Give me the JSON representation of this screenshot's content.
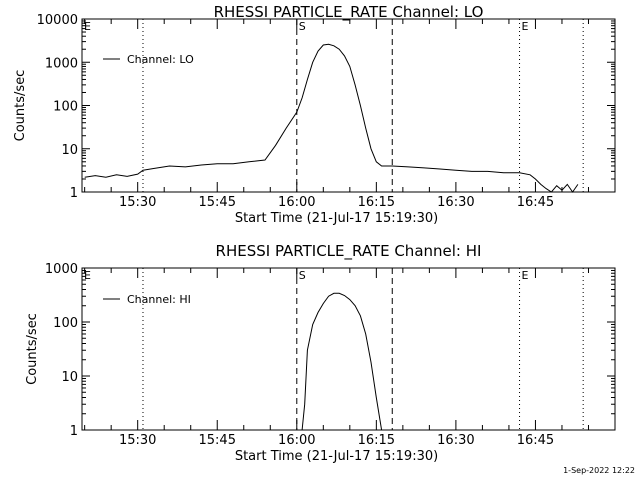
{
  "footer": {
    "stamp": "1-Sep-2022 12:22"
  },
  "chart_data": [
    {
      "type": "line",
      "title": "RHESSI PARTICLE_RATE Channel: LO",
      "xlabel": "Start Time (21-Jul-17 15:19:30)",
      "ylabel": "Counts/sec",
      "yscale": "log",
      "xlim": [
        "15:19:30",
        "17:00:00"
      ],
      "ylim": [
        1,
        10000
      ],
      "x_ticks": [
        "15:30",
        "15:45",
        "16:00",
        "16:15",
        "16:30",
        "16:45"
      ],
      "y_ticks": [
        "1",
        "10",
        "100",
        "1000",
        "10000"
      ],
      "legend": {
        "position": "top-left",
        "entries": [
          "Channel: LO"
        ]
      },
      "markers": [
        {
          "label": "E",
          "time": "15:19:30",
          "style": "dotted"
        },
        {
          "label": "",
          "time": "15:31:00",
          "style": "dotted"
        },
        {
          "label": "S",
          "time": "16:00:00",
          "style": "dashed"
        },
        {
          "label": "",
          "time": "16:18:00",
          "style": "dashed"
        },
        {
          "label": "E",
          "time": "16:42:00",
          "style": "dotted"
        },
        {
          "label": "",
          "time": "16:54:00",
          "style": "dotted"
        }
      ],
      "series": [
        {
          "name": "Channel: LO",
          "x": [
            "15:20",
            "15:22",
            "15:24",
            "15:26",
            "15:28",
            "15:30",
            "15:31",
            "15:33",
            "15:36",
            "15:39",
            "15:42",
            "15:45",
            "15:48",
            "15:51",
            "15:54",
            "15:56",
            "15:58",
            "16:00",
            "16:01",
            "16:02",
            "16:03",
            "16:04",
            "16:05",
            "16:06",
            "16:07",
            "16:08",
            "16:09",
            "16:10",
            "16:11",
            "16:12",
            "16:13",
            "16:14",
            "16:15",
            "16:16",
            "16:18",
            "16:21",
            "16:24",
            "16:27",
            "16:30",
            "16:33",
            "16:36",
            "16:39",
            "16:42",
            "16:44",
            "16:45",
            "16:46",
            "16:47",
            "16:48",
            "16:49",
            "16:50",
            "16:51",
            "16:52",
            "16:53"
          ],
          "values": [
            2.2,
            2.4,
            2.2,
            2.5,
            2.3,
            2.6,
            3.2,
            3.5,
            4.0,
            3.8,
            4.2,
            4.5,
            4.5,
            5.0,
            5.5,
            12,
            30,
            70,
            150,
            400,
            1000,
            1800,
            2500,
            2600,
            2400,
            2000,
            1400,
            800,
            300,
            100,
            30,
            10,
            5,
            4,
            4,
            3.8,
            3.6,
            3.4,
            3.2,
            3.0,
            3.0,
            2.8,
            2.8,
            2.5,
            2.0,
            1.5,
            1.2,
            1.0,
            1.4,
            1.1,
            1.5,
            1.0,
            1.5
          ]
        }
      ]
    },
    {
      "type": "line",
      "title": "RHESSI PARTICLE_RATE Channel: HI",
      "xlabel": "Start Time (21-Jul-17 15:19:30)",
      "ylabel": "Counts/sec",
      "yscale": "log",
      "xlim": [
        "15:19:30",
        "17:00:00"
      ],
      "ylim": [
        1,
        1000
      ],
      "x_ticks": [
        "15:30",
        "15:45",
        "16:00",
        "16:15",
        "16:30",
        "16:45"
      ],
      "y_ticks": [
        "1",
        "10",
        "100",
        "1000"
      ],
      "legend": {
        "position": "top-left",
        "entries": [
          "Channel: HI"
        ]
      },
      "markers": [
        {
          "label": "E",
          "time": "15:19:30",
          "style": "dotted"
        },
        {
          "label": "",
          "time": "15:31:00",
          "style": "dotted"
        },
        {
          "label": "S",
          "time": "16:00:00",
          "style": "dashed"
        },
        {
          "label": "",
          "time": "16:18:00",
          "style": "dashed"
        },
        {
          "label": "E",
          "time": "16:42:00",
          "style": "dotted"
        },
        {
          "label": "",
          "time": "16:54:00",
          "style": "dotted"
        }
      ],
      "series": [
        {
          "name": "Channel: HI",
          "x": [
            "16:01",
            "16:01:30",
            "16:02",
            "16:03",
            "16:04",
            "16:05",
            "16:06",
            "16:07",
            "16:08",
            "16:09",
            "16:10",
            "16:11",
            "16:12",
            "16:13",
            "16:14",
            "16:15",
            "16:16"
          ],
          "values": [
            1,
            3,
            30,
            90,
            150,
            220,
            300,
            340,
            340,
            310,
            260,
            200,
            130,
            60,
            18,
            4,
            1
          ]
        }
      ]
    }
  ]
}
